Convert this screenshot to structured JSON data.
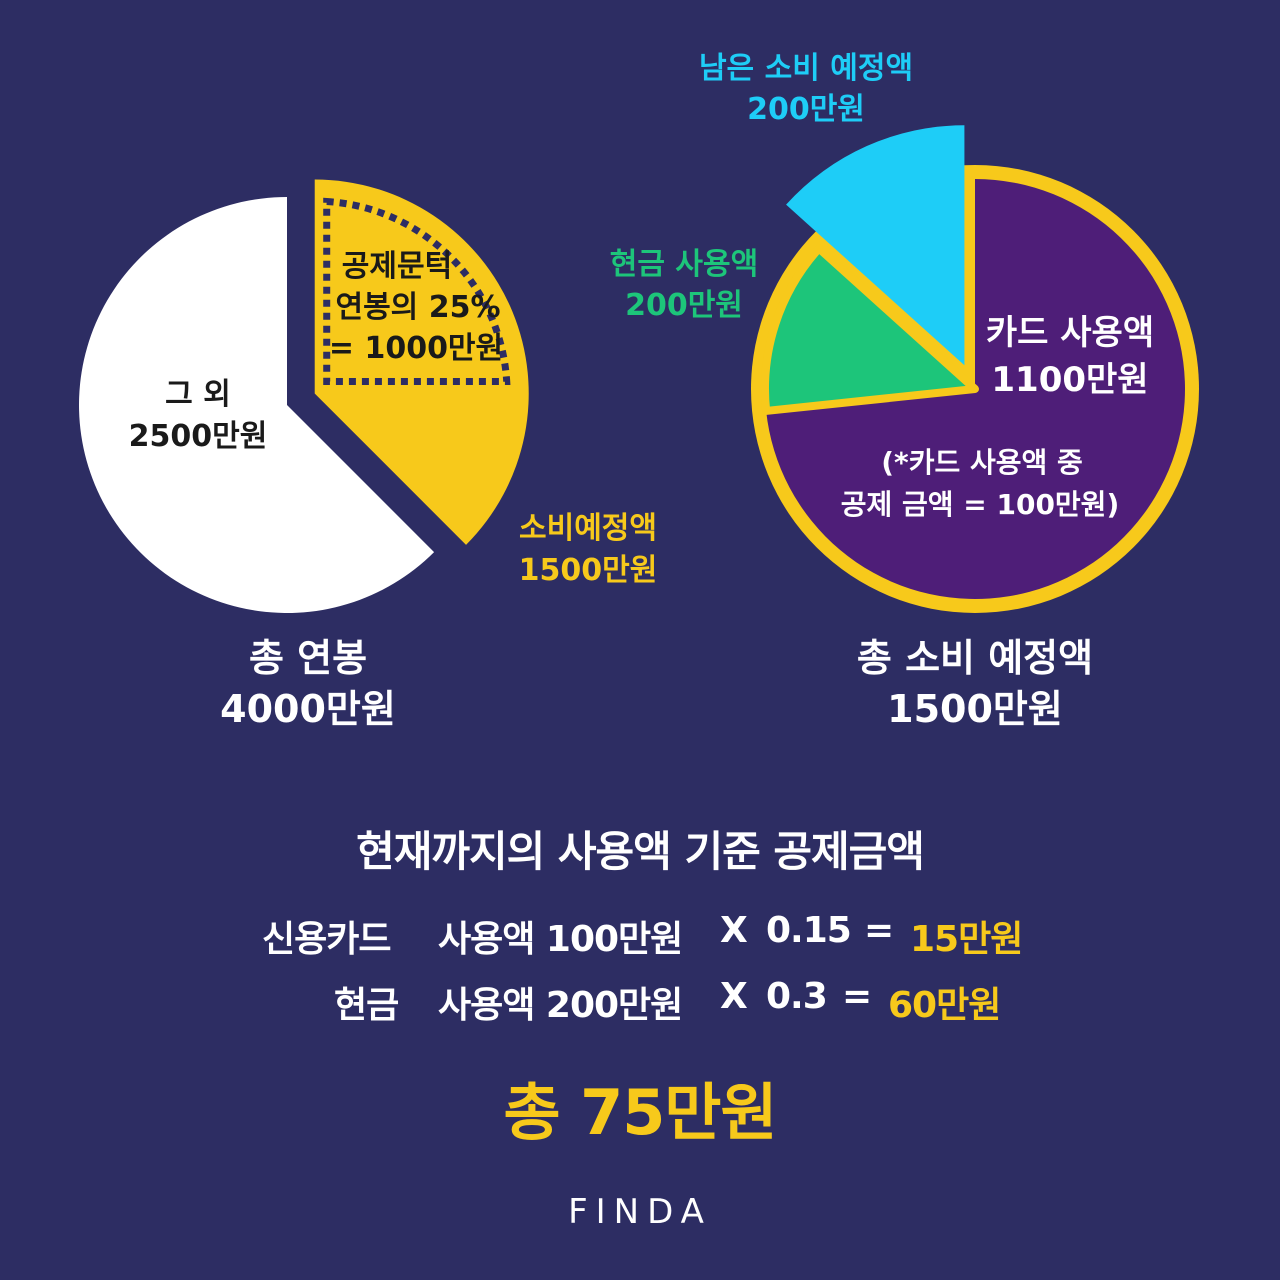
{
  "chart_data": [
    {
      "type": "pie",
      "title": "총 연봉",
      "subtitle": "4000만원",
      "slices": [
        {
          "label": "그 외",
          "value_label": "2500만원",
          "value": 2500,
          "color": "#ffffff"
        },
        {
          "label": "소비예정액",
          "value_label": "1500만원",
          "value": 1500,
          "color": "#f7c91b"
        }
      ],
      "sub_slice": {
        "label": "공제문턱",
        "line2": "연봉의 25%",
        "value_label": "= 1000만원",
        "value": 1000,
        "style": "dotted"
      }
    },
    {
      "type": "pie",
      "title": "총 소비 예정액",
      "subtitle": "1500만원",
      "slices": [
        {
          "label": "카드 사용액",
          "value_label": "1100만원",
          "value": 1100,
          "color": "#4e1e78"
        },
        {
          "label": "현금 사용액",
          "value_label": "200만원",
          "value": 200,
          "color": "#1dc57a"
        },
        {
          "label": "남은 소비 예정액",
          "value_label": "200만원",
          "value": 200,
          "color": "#1ecdf7"
        }
      ],
      "note": {
        "line1": "(*카드 사용액 중",
        "line2": "공제 금액 = 100만원)"
      }
    }
  ],
  "calc": {
    "title": "현재까지의 사용액 기준 공제금액",
    "rows": [
      {
        "item": "신용카드",
        "usage": "사용액 100만원",
        "op": "X",
        "rate": "0.15",
        "eq": "=",
        "result": "15만원"
      },
      {
        "item": "현금",
        "usage": "사용액 200만원",
        "op": "X",
        "rate": "0.3",
        "eq": "=",
        "result": "60만원"
      }
    ],
    "total": "총 75만원"
  },
  "brand": {
    "logo": "FINDA"
  },
  "colors": {
    "background": "#2d2d63",
    "accent": "#f7c91b",
    "card": "#4e1e78",
    "cash": "#1dc57a",
    "remaining": "#1ecdf7"
  }
}
